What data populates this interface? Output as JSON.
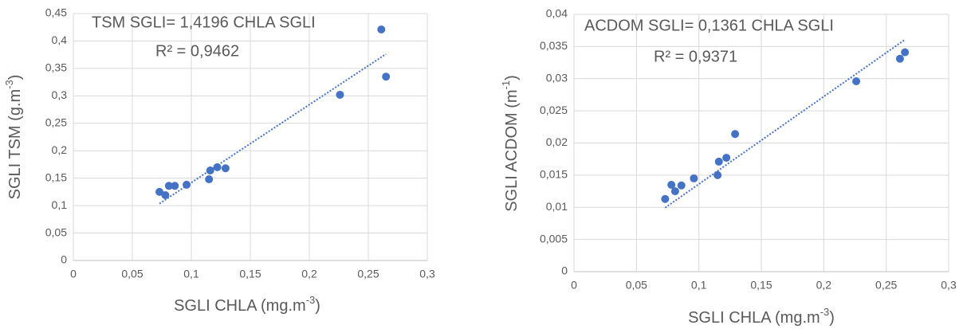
{
  "chart_data": [
    {
      "type": "scatter",
      "annotation": "TSM SGLI= 1,4196 CHLA SGLI",
      "r2_text": "R² = 0,9462",
      "x_label": "SGLI CHLA (mg.m",
      "x_label_sup": "-3",
      "x_label_end": ")",
      "y_label": "SGLI TSM (g.m",
      "y_label_sup": "-3",
      "y_label_end": ")",
      "x": [
        0.073,
        0.078,
        0.081,
        0.086,
        0.096,
        0.115,
        0.116,
        0.122,
        0.129,
        0.226,
        0.261,
        0.265
      ],
      "series": [
        {
          "name": "TSM",
          "color": "#4472c4",
          "values": [
            0.125,
            0.119,
            0.136,
            0.136,
            0.138,
            0.148,
            0.164,
            0.17,
            0.168,
            0.302,
            0.421,
            0.335
          ]
        }
      ],
      "trend_slope": 1.4196,
      "xlim": [
        0,
        0.3
      ],
      "xticks": [
        0,
        {
          "value": 0.05,
          "label": "0,05"
        },
        {
          "value": 0.1,
          "label": "0,1"
        },
        {
          "value": 0.15,
          "label": "0,15"
        },
        {
          "value": 0.2,
          "label": "0,2"
        },
        {
          "value": 0.25,
          "label": "0,25"
        },
        {
          "value": 0.3,
          "label": "0,3"
        }
      ],
      "ylim": [
        0,
        0.45
      ],
      "yticks": [
        0,
        {
          "value": 0.05,
          "label": "0,05"
        },
        {
          "value": 0.1,
          "label": "0,1"
        },
        {
          "value": 0.15,
          "label": "0,15"
        },
        {
          "value": 0.2,
          "label": "0,2"
        },
        {
          "value": 0.25,
          "label": "0,25"
        },
        {
          "value": 0.3,
          "label": "0,3"
        },
        {
          "value": 0.35,
          "label": "0,35"
        },
        {
          "value": 0.4,
          "label": "0,4"
        },
        {
          "value": 0.45,
          "label": "0,45"
        }
      ],
      "grid": true
    },
    {
      "type": "scatter",
      "annotation": "ACDOM SGLI= 0,1361 CHLA SGLI",
      "r2_text": "R² = 0,9371",
      "x_label": "SGLI CHLA (mg.m",
      "x_label_sup": "-3",
      "x_label_end": ")",
      "y_label": "SGLI ACDOM (m",
      "y_label_sup": "-1",
      "y_label_end": ")",
      "x": [
        0.073,
        0.078,
        0.081,
        0.086,
        0.096,
        0.115,
        0.116,
        0.122,
        0.129,
        0.226,
        0.261,
        0.265
      ],
      "series": [
        {
          "name": "ACDOM",
          "color": "#4472c4",
          "values": [
            0.0113,
            0.0135,
            0.0125,
            0.0134,
            0.0145,
            0.015,
            0.0171,
            0.0177,
            0.0214,
            0.0296,
            0.0331,
            0.0341
          ]
        }
      ],
      "trend_slope": 0.1361,
      "xlim": [
        0,
        0.3
      ],
      "xticks": [
        0,
        {
          "value": 0.05,
          "label": "0,05"
        },
        {
          "value": 0.1,
          "label": "0,1"
        },
        {
          "value": 0.15,
          "label": "0,15"
        },
        {
          "value": 0.2,
          "label": "0,2"
        },
        {
          "value": 0.25,
          "label": "0,25"
        },
        {
          "value": 0.3,
          "label": "0,3"
        }
      ],
      "ylim": [
        0,
        0.04
      ],
      "yticks": [
        0,
        {
          "value": 0.005,
          "label": "0,005"
        },
        {
          "value": 0.01,
          "label": "0,01"
        },
        {
          "value": 0.015,
          "label": "0,015"
        },
        {
          "value": 0.02,
          "label": "0,02"
        },
        {
          "value": 0.025,
          "label": "0,025"
        },
        {
          "value": 0.03,
          "label": "0,03"
        },
        {
          "value": 0.035,
          "label": "0,035"
        },
        {
          "value": 0.04,
          "label": "0,04"
        }
      ],
      "grid": true
    }
  ]
}
